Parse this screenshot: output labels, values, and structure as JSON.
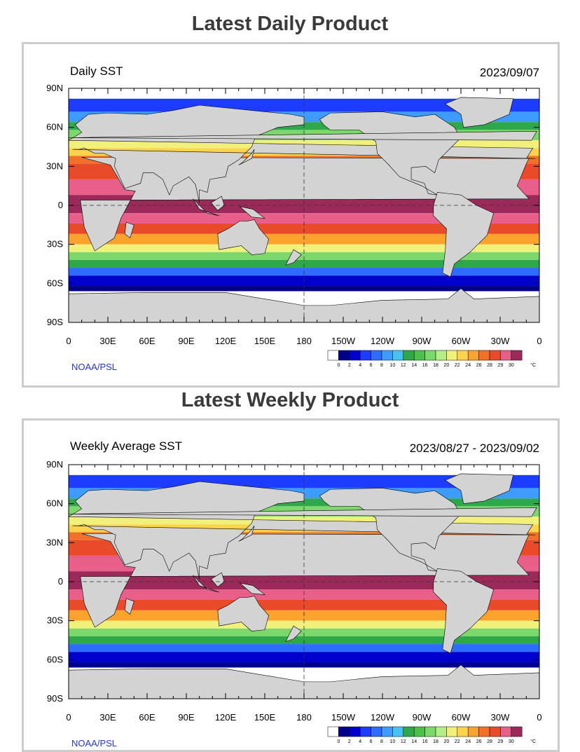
{
  "daily": {
    "section_title": "Latest Daily Product",
    "map_title": "Daily SST",
    "date": "2023/09/07",
    "credit": "NOAA/PSL"
  },
  "weekly": {
    "section_title": "Latest Weekly Product",
    "map_title": "Weekly Average SST",
    "date": "2023/08/27 - 2023/09/02",
    "credit": "NOAA/PSL"
  },
  "axes": {
    "lat_labels": [
      "90N",
      "60N",
      "30N",
      "0",
      "30S",
      "60S",
      "90S"
    ],
    "lon_labels": [
      "0",
      "30E",
      "60E",
      "90E",
      "120E",
      "150E",
      "180",
      "150W",
      "120W",
      "90W",
      "60W",
      "30W",
      "0"
    ]
  },
  "colorbar": {
    "unit": "°C",
    "ticks": [
      "0",
      "2",
      "4",
      "6",
      "8",
      "10",
      "12",
      "14",
      "16",
      "18",
      "20",
      "22",
      "24",
      "26",
      "28",
      "29",
      "30"
    ],
    "colors": [
      "#ffffff",
      "#00008b",
      "#0000cd",
      "#1e3cff",
      "#2f6bff",
      "#3e9bff",
      "#46c3f0",
      "#2ea84a",
      "#4cbf4c",
      "#7cd86a",
      "#b4ee88",
      "#f0f07a",
      "#fcd34a",
      "#f9a22c",
      "#f3702a",
      "#e84a2a",
      "#e8608a",
      "#9b2a5a"
    ]
  },
  "land_color": "#d3d3d3"
}
